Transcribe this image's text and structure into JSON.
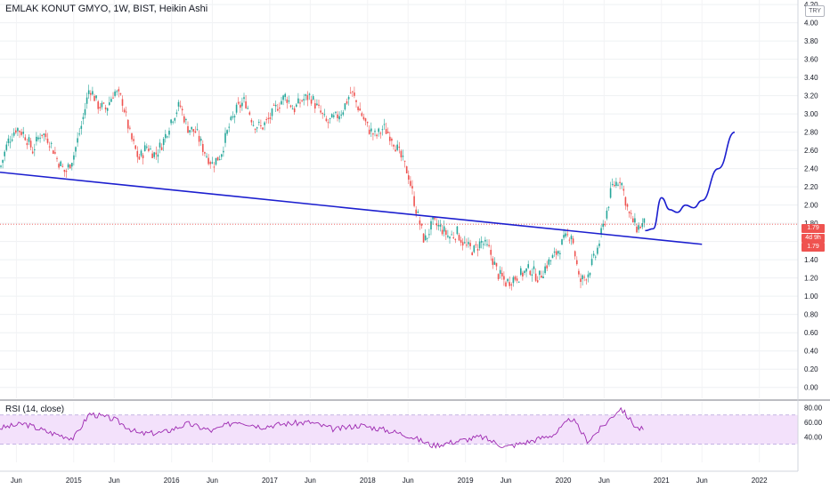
{
  "header": {
    "title": "EMLAK KONUT GMYO, 1W, BIST, Heikin Ashi",
    "currency": "TRY"
  },
  "price_tags": {
    "last": "1.79",
    "countdown": "4d 9h",
    "close": "1.79"
  },
  "rsi": {
    "title": "RSI (14, close)"
  },
  "colors": {
    "up": "#26a69a",
    "down": "#ef5350",
    "trendline": "#1c1fcf",
    "rsi_line": "#9c27b0",
    "rsi_band": "#f3e1fb",
    "price_line": "#ef5350"
  },
  "chart_data": [
    {
      "type": "candlestick",
      "title": "EMLAK KONUT GMYO, 1W, BIST, Heikin Ashi",
      "x_tick_labels": [
        "Jun",
        "2015",
        "Jun",
        "2016",
        "Jun",
        "2017",
        "Jun",
        "2018",
        "Jun",
        "2019",
        "Jun",
        "2020",
        "Jun",
        "2021",
        "Jun",
        "2022"
      ],
      "y_tick_labels": [
        "4.20",
        "4.00",
        "3.80",
        "3.60",
        "3.40",
        "3.20",
        "3.00",
        "2.80",
        "2.60",
        "2.40",
        "2.20",
        "2.00",
        "1.80",
        "1.60",
        "1.40",
        "1.20",
        "1.00",
        "0.80",
        "0.60",
        "0.40",
        "0.20",
        "0.00"
      ],
      "ylim": [
        -0.12,
        4.25
      ],
      "grid": true,
      "price_path": [
        [
          "2014-04",
          2.4
        ],
        [
          "2014-05",
          2.7
        ],
        [
          "2014-06",
          2.85
        ],
        [
          "2014-07",
          2.78
        ],
        [
          "2014-08",
          2.6
        ],
        [
          "2014-09",
          2.8
        ],
        [
          "2014-10",
          2.72
        ],
        [
          "2014-11",
          2.5
        ],
        [
          "2014-12",
          2.35
        ],
        [
          "2015-01",
          2.55
        ],
        [
          "2015-02",
          2.9
        ],
        [
          "2015-03",
          3.3
        ],
        [
          "2015-04",
          3.1
        ],
        [
          "2015-05",
          3.05
        ],
        [
          "2015-06",
          3.25
        ],
        [
          "2015-07",
          3.15
        ],
        [
          "2015-08",
          2.75
        ],
        [
          "2015-09",
          2.5
        ],
        [
          "2015-10",
          2.65
        ],
        [
          "2015-11",
          2.55
        ],
        [
          "2015-12",
          2.7
        ],
        [
          "2016-01",
          2.95
        ],
        [
          "2016-02",
          3.1
        ],
        [
          "2016-03",
          2.85
        ],
        [
          "2016-04",
          2.8
        ],
        [
          "2016-05",
          2.6
        ],
        [
          "2016-06",
          2.45
        ],
        [
          "2016-07",
          2.55
        ],
        [
          "2016-08",
          2.85
        ],
        [
          "2016-09",
          3.05
        ],
        [
          "2016-10",
          3.15
        ],
        [
          "2016-11",
          2.9
        ],
        [
          "2016-12",
          2.85
        ],
        [
          "2017-01",
          2.95
        ],
        [
          "2017-02",
          3.1
        ],
        [
          "2017-03",
          3.2
        ],
        [
          "2017-04",
          3.05
        ],
        [
          "2017-05",
          3.15
        ],
        [
          "2017-06",
          3.2
        ],
        [
          "2017-07",
          3.05
        ],
        [
          "2017-08",
          2.9
        ],
        [
          "2017-09",
          2.95
        ],
        [
          "2017-10",
          3.05
        ],
        [
          "2017-11",
          3.25
        ],
        [
          "2017-12",
          3.05
        ],
        [
          "2018-01",
          2.85
        ],
        [
          "2018-02",
          2.75
        ],
        [
          "2018-03",
          2.85
        ],
        [
          "2018-04",
          2.75
        ],
        [
          "2018-05",
          2.55
        ],
        [
          "2018-06",
          2.35
        ],
        [
          "2018-07",
          1.95
        ],
        [
          "2018-08",
          1.6
        ],
        [
          "2018-09",
          1.8
        ],
        [
          "2018-10",
          1.75
        ],
        [
          "2018-11",
          1.65
        ],
        [
          "2018-12",
          1.7
        ],
        [
          "2019-01",
          1.55
        ],
        [
          "2019-02",
          1.5
        ],
        [
          "2019-03",
          1.6
        ],
        [
          "2019-04",
          1.5
        ],
        [
          "2019-05",
          1.25
        ],
        [
          "2019-06",
          1.15
        ],
        [
          "2019-07",
          1.2
        ],
        [
          "2019-08",
          1.25
        ],
        [
          "2019-09",
          1.3
        ],
        [
          "2019-10",
          1.2
        ],
        [
          "2019-11",
          1.35
        ],
        [
          "2019-12",
          1.45
        ],
        [
          "2020-01",
          1.6
        ],
        [
          "2020-02",
          1.7
        ],
        [
          "2020-03",
          1.15
        ],
        [
          "2020-04",
          1.25
        ],
        [
          "2020-05",
          1.45
        ],
        [
          "2020-06",
          1.8
        ],
        [
          "2020-07",
          2.2
        ],
        [
          "2020-08",
          2.3
        ],
        [
          "2020-09",
          1.9
        ],
        [
          "2020-10",
          1.75
        ],
        [
          "2020-11",
          1.8
        ]
      ],
      "trendline": [
        [
          "2014-04",
          2.36
        ],
        [
          "2021-06",
          1.57
        ]
      ],
      "projection": [
        [
          "2020-11",
          1.72
        ],
        [
          "2020-12",
          1.74
        ],
        [
          "2021-01",
          2.08
        ],
        [
          "2021-02",
          1.95
        ],
        [
          "2021-03",
          1.92
        ],
        [
          "2021-04",
          2.0
        ],
        [
          "2021-05",
          1.97
        ],
        [
          "2021-06",
          2.05
        ],
        [
          "2021-08",
          2.4
        ],
        [
          "2021-10",
          2.8
        ]
      ],
      "last_price": 1.79
    },
    {
      "type": "line",
      "title": "RSI (14, close)",
      "y_tick_labels": [
        "80.00",
        "60.00",
        "40.00"
      ],
      "ylim": [
        5,
        88
      ],
      "band": [
        30,
        70
      ],
      "grid": true,
      "x": [
        "2014-04",
        "2014-07",
        "2014-10",
        "2015-01",
        "2015-03",
        "2015-06",
        "2015-09",
        "2015-12",
        "2016-03",
        "2016-06",
        "2016-09",
        "2016-12",
        "2017-03",
        "2017-06",
        "2017-09",
        "2017-12",
        "2018-03",
        "2018-06",
        "2018-09",
        "2018-12",
        "2019-03",
        "2019-06",
        "2019-09",
        "2019-12",
        "2020-02",
        "2020-04",
        "2020-06",
        "2020-08",
        "2020-10",
        "2020-11"
      ],
      "values": [
        52,
        58,
        46,
        38,
        72,
        64,
        44,
        46,
        58,
        48,
        62,
        54,
        58,
        60,
        50,
        56,
        50,
        42,
        28,
        34,
        40,
        26,
        34,
        44,
        66,
        34,
        56,
        80,
        52,
        50
      ]
    }
  ]
}
